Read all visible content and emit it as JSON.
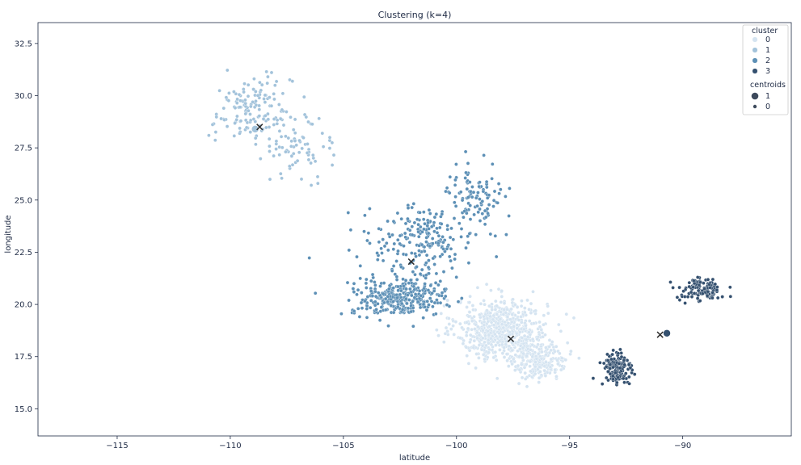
{
  "chart_data": {
    "type": "scatter",
    "title": "Clustering (k=4)",
    "xlabel": "latitude",
    "ylabel": "longitude",
    "xlim": [
      -118.5,
      -85.2
    ],
    "ylim": [
      13.7,
      33.5
    ],
    "xticks": [
      -115,
      -110,
      -105,
      -100,
      -95,
      -90
    ],
    "xtick_labels": [
      "−115",
      "−110",
      "−105",
      "−100",
      "−95",
      "−90"
    ],
    "yticks": [
      15.0,
      17.5,
      20.0,
      22.5,
      25.0,
      27.5,
      30.0,
      32.5
    ],
    "ytick_labels": [
      "15.0",
      "17.5",
      "20.0",
      "22.5",
      "25.0",
      "27.5",
      "30.0",
      "32.5"
    ],
    "grid": false,
    "legend": {
      "placement": "top-right",
      "hue_title": "cluster",
      "hue_entries": [
        {
          "label": "0",
          "color": "#d5e4f1"
        },
        {
          "label": "1",
          "color": "#a3c3db"
        },
        {
          "label": "2",
          "color": "#5d90b6"
        },
        {
          "label": "3",
          "color": "#34506f"
        }
      ],
      "size_title": "centroids",
      "size_entries": [
        {
          "label": "1",
          "size": "large"
        },
        {
          "label": "0",
          "size": "small"
        }
      ]
    },
    "clusters": [
      {
        "name": "0",
        "color": "#d5e4f1",
        "count": 900,
        "regions": [
          {
            "center": [
              -98.0,
              18.8
            ],
            "spread": [
              1.8,
              1.3
            ],
            "weight": 0.75
          },
          {
            "center": [
              -96.3,
              17.3
            ],
            "spread": [
              1.1,
              0.8
            ],
            "weight": 0.25
          }
        ]
      },
      {
        "name": "1",
        "color": "#a3c3db",
        "count": 220,
        "regions": [
          {
            "center": [
              -109.0,
              29.2
            ],
            "spread": [
              1.6,
              1.5
            ],
            "weight": 0.7
          },
          {
            "center": [
              -106.8,
              27.5
            ],
            "spread": [
              1.2,
              1.2
            ],
            "weight": 0.3
          }
        ]
      },
      {
        "name": "2",
        "color": "#5d90b6",
        "count": 650,
        "regions": [
          {
            "center": [
              -102.5,
              20.3
            ],
            "spread": [
              1.9,
              0.8
            ],
            "weight": 0.5
          },
          {
            "center": [
              -101.5,
              23.0
            ],
            "spread": [
              2.2,
              1.6
            ],
            "weight": 0.35
          },
          {
            "center": [
              -99.2,
              25.2
            ],
            "spread": [
              1.2,
              1.5
            ],
            "weight": 0.15
          }
        ]
      },
      {
        "name": "3",
        "color": "#34506f",
        "count": 260,
        "regions": [
          {
            "center": [
              -92.9,
              16.9
            ],
            "spread": [
              0.6,
              0.8
            ],
            "weight": 0.55
          },
          {
            "center": [
              -89.2,
              20.7
            ],
            "spread": [
              0.9,
              0.5
            ],
            "weight": 0.45
          }
        ]
      }
    ],
    "centroids": [
      {
        "cluster": "0",
        "x": -97.6,
        "y": 18.35
      },
      {
        "cluster": "1",
        "x": -108.7,
        "y": 28.5
      },
      {
        "cluster": "2",
        "x": -102.0,
        "y": 22.05
      },
      {
        "cluster": "3",
        "x": -91.0,
        "y": 18.55
      }
    ],
    "highlighted_points": [
      {
        "cluster": "1",
        "x": -108.9,
        "y": 28.4,
        "size": "large"
      },
      {
        "cluster": "3",
        "x": -90.7,
        "y": 18.62,
        "size": "large"
      }
    ]
  }
}
